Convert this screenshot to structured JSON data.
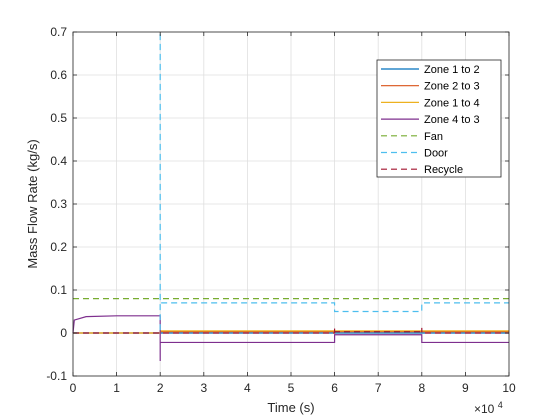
{
  "chart_data": {
    "type": "line",
    "title": "",
    "xlabel": "Time (s)",
    "ylabel": "Mass Flow Rate (kg/s)",
    "x_exponent_label": "×10^4",
    "x_exponent_base": "×10",
    "x_exponent_power": "4",
    "xlim": [
      0,
      10
    ],
    "ylim": [
      -0.1,
      0.7
    ],
    "xticks": [
      0,
      1,
      2,
      3,
      4,
      5,
      6,
      7,
      8,
      9,
      10
    ],
    "xtick_labels": [
      "0",
      "1",
      "2",
      "3",
      "4",
      "5",
      "6",
      "7",
      "8",
      "9",
      "10"
    ],
    "yticks": [
      -0.1,
      0,
      0.1,
      0.2,
      0.3,
      0.4,
      0.5,
      0.6,
      0.7
    ],
    "ytick_labels": [
      "-0.1",
      "0",
      "0.1",
      "0.2",
      "0.3",
      "0.4",
      "0.5",
      "0.6",
      "0.7"
    ],
    "grid": true,
    "legend_position": "top-right",
    "series": [
      {
        "name": "Zone 1 to 2",
        "color": "#0072BD",
        "dash": "solid",
        "points": [
          [
            0,
            0.0
          ],
          [
            2,
            0.0
          ],
          [
            10,
            0.0
          ]
        ]
      },
      {
        "name": "Zone 2 to 3",
        "color": "#D95319",
        "dash": "solid",
        "points": [
          [
            0,
            0.0
          ],
          [
            1.999,
            0.0
          ],
          [
            2.0,
            0.003
          ],
          [
            10,
            0.003
          ]
        ]
      },
      {
        "name": "Zone 1 to 4",
        "color": "#EDB120",
        "dash": "solid",
        "points": [
          [
            0,
            0.0
          ],
          [
            1.999,
            0.0
          ],
          [
            2.0,
            0.005
          ],
          [
            10,
            0.005
          ]
        ]
      },
      {
        "name": "Zone 4 to 3",
        "color": "#7E2F8E",
        "dash": "solid",
        "points": [
          [
            0,
            0.0
          ],
          [
            0.03,
            0.03
          ],
          [
            0.3,
            0.038
          ],
          [
            1,
            0.04
          ],
          [
            1.999,
            0.04
          ],
          [
            2.0,
            -0.065
          ],
          [
            2.0,
            -0.022
          ],
          [
            5.999,
            -0.022
          ],
          [
            6.0,
            -0.01
          ],
          [
            6.0,
            -0.004
          ],
          [
            7.999,
            -0.004
          ],
          [
            8.0,
            -0.012
          ],
          [
            8.0,
            -0.022
          ],
          [
            10,
            -0.022
          ]
        ]
      },
      {
        "name": "Fan",
        "color": "#77AC30",
        "dash": "dashed",
        "points": [
          [
            0,
            0.08
          ],
          [
            10,
            0.08
          ]
        ]
      },
      {
        "name": "Door",
        "color": "#4DBEEE",
        "dash": "dashed",
        "points": [
          [
            0,
            0.0
          ],
          [
            1.999,
            0.0
          ],
          [
            2.0,
            0.7
          ],
          [
            2.0,
            0.07
          ],
          [
            5.999,
            0.07
          ],
          [
            6.0,
            0.05
          ],
          [
            7.999,
            0.05
          ],
          [
            8.0,
            0.07
          ],
          [
            10,
            0.07
          ]
        ]
      },
      {
        "name": "Recycle",
        "color": "#A2142F",
        "dash": "dashed",
        "points": [
          [
            0,
            0.0
          ],
          [
            5.999,
            0.0
          ],
          [
            6.0,
            0.012
          ],
          [
            6.0,
            0.003
          ],
          [
            7.999,
            0.003
          ],
          [
            8.0,
            0.012
          ],
          [
            8.0,
            0.0
          ],
          [
            10,
            0.0
          ]
        ]
      }
    ]
  }
}
